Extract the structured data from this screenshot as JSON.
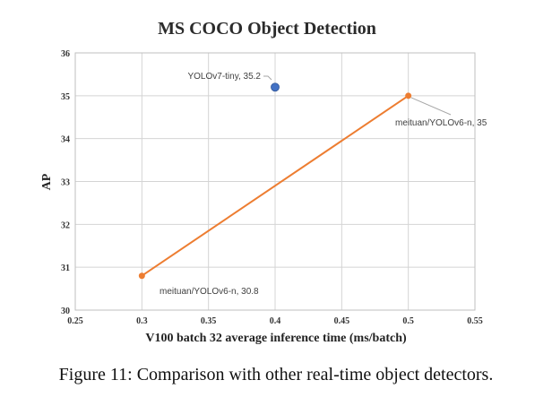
{
  "caption": "Figure 11: Comparison with other real-time object detectors.",
  "colors": {
    "yolov6_series": "#ED7D31",
    "yolov7_point": "#4472C4",
    "grid": "#d4d4d4",
    "leader": "#a6a6a6"
  },
  "chart_data": {
    "type": "scatter",
    "title": "MS COCO Object Detection",
    "xlabel": "V100 batch 32 average inference time (ms/batch)",
    "ylabel": "AP",
    "xlim": [
      0.25,
      0.55
    ],
    "ylim": [
      30,
      36
    ],
    "x_ticks": [
      "0.25",
      "0.3",
      "0.35",
      "0.4",
      "0.45",
      "0.5",
      "0.55"
    ],
    "y_ticks": [
      "30",
      "31",
      "32",
      "33",
      "34",
      "35",
      "36"
    ],
    "grid": true,
    "legend": "none",
    "series": [
      {
        "type": "line",
        "color": "#ED7D31",
        "points": [
          {
            "x": 0.3,
            "y": 30.8,
            "label": "meituan/YOLOv6-n, 30.8"
          },
          {
            "x": 0.5,
            "y": 35,
            "label": "meituan/YOLOv6-n, 35"
          }
        ]
      },
      {
        "type": "scatter",
        "color": "#4472C4",
        "points": [
          {
            "x": 0.4,
            "y": 35.2,
            "label": "YOLOv7-tiny, 35.2"
          }
        ]
      }
    ]
  }
}
